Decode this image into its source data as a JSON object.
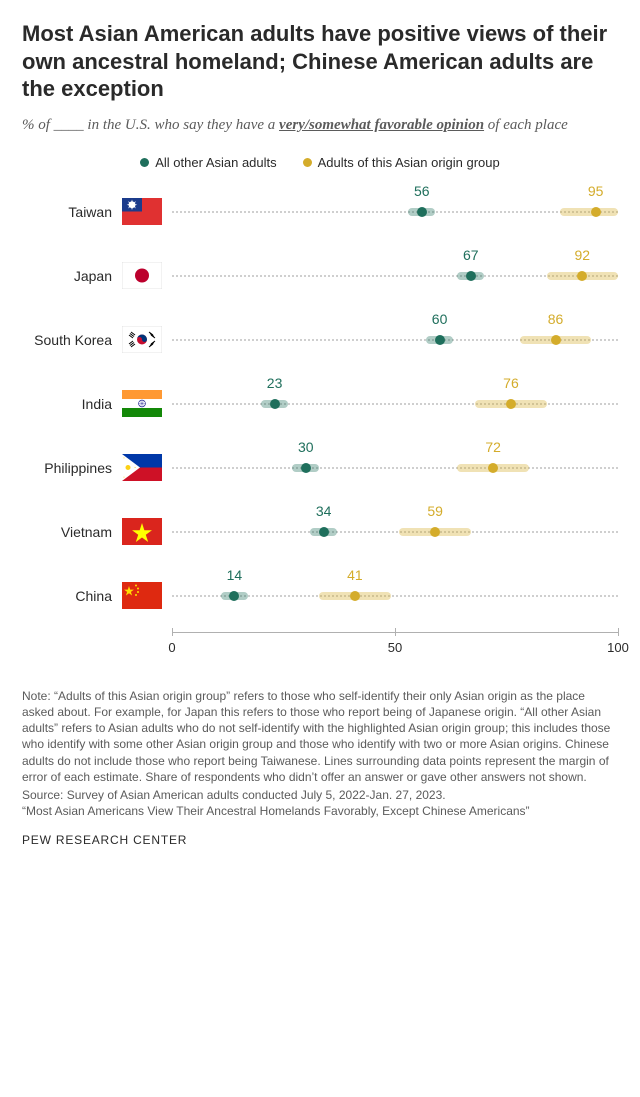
{
  "title": "Most Asian American adults have positive views of their own ancestral homeland; Chinese American adults are the exception",
  "subtitle_pre": "% of ____ in the U.S. who say they have a ",
  "subtitle_underlined": "very/somewhat favorable opinion",
  "subtitle_post": " of each place",
  "legend": {
    "series_a": "All other Asian adults",
    "series_b": "Adults of this Asian origin group"
  },
  "colors": {
    "series_a": "#1f6f5c",
    "series_b": "#d4ac2b",
    "background": "#ffffff",
    "dotted": "#cfcfcf",
    "axis": "#b0b0b0",
    "text": "#2a2a2a",
    "subtext": "#5b5b5b"
  },
  "chart": {
    "type": "dot",
    "xlim": [
      0,
      100
    ],
    "ticks": [
      0,
      50,
      100
    ],
    "moe_halfwidth_a": 3,
    "moe_halfwidth_b": 8,
    "rows": [
      {
        "label": "Taiwan",
        "a": 56,
        "b": 95
      },
      {
        "label": "Japan",
        "a": 67,
        "b": 92
      },
      {
        "label": "South Korea",
        "a": 60,
        "b": 86
      },
      {
        "label": "India",
        "a": 23,
        "b": 76
      },
      {
        "label": "Philippines",
        "a": 30,
        "b": 72
      },
      {
        "label": "Vietnam",
        "a": 34,
        "b": 59
      },
      {
        "label": "China",
        "a": 14,
        "b": 41
      }
    ]
  },
  "note": "Note: “Adults of this Asian origin group” refers to those who self-identify their only Asian origin as the place asked about. For example, for Japan this refers to those who report being of Japanese origin. “All other Asian adults” refers to Asian adults who do not self-identify with the highlighted Asian origin group; this includes those who identify with some other Asian origin group and those who identify with two or more Asian origins. Chinese adults do not include those who report being Taiwanese. Lines surrounding data points represent the margin of error of each estimate. Share of respondents who didn’t offer an answer or gave other answers not shown.",
  "source": "Source: Survey of Asian American adults conducted July 5, 2022-Jan. 27, 2023.\n“Most Asian Americans View Their Ancestral Homelands Favorably, Except Chinese Americans”",
  "attribution": "PEW RESEARCH CENTER",
  "flags": {
    "Taiwan": "<svg viewBox='0 0 40 27'><rect width='40' height='27' fill='#e03131'/><rect width='20' height='13.5' fill='#1b3b8b'/><circle cx='10' cy='6.75' r='3.4' fill='#fff'/><g fill='#fff'><path d='M10 1.5 L10.8 4 L9.2 4 Z'/><path d='M10 12 L10.8 9.5 L9.2 9.5 Z'/><path d='M4.8 6.75 L7.3 7.55 L7.3 5.95 Z'/><path d='M15.2 6.75 L12.7 7.55 L12.7 5.95 Z'/><path d='M6.3 3 L8.3 4.9 L7.2 6 Z'/><path d='M13.7 3 L11.7 4.9 L12.8 6 Z'/><path d='M6.3 10.5 L8.3 8.6 L7.2 7.5 Z'/><path d='M13.7 10.5 L11.7 8.6 L12.8 7.5 Z'/></g></svg>",
    "Japan": "<svg viewBox='0 0 40 27'><rect width='40' height='27' fill='#fff' stroke='#ccc' stroke-width='0.5'/><circle cx='20' cy='13.5' r='7' fill='#bc002d'/></svg>",
    "South Korea": "<svg viewBox='0 0 40 27'><rect width='40' height='27' fill='#fff' stroke='#ccc' stroke-width='0.5'/><circle cx='20' cy='13.5' r='5' fill='#c60c30'/><path d='M15 13.5 A5 5 0 0 1 25 13.5 A2.5 2.5 0 0 1 20 13.5 A2.5 2.5 0 0 0 15 13.5 Z' fill='#003478'/><g stroke='#000' stroke-width='1' fill='none'><line x1='9' y1='6' x2='13' y2='9'/><line x1='8' y1='7.5' x2='12' y2='10.5'/><line x1='7' y1='9' x2='11' y2='12'/><line x1='27' y1='6' x2='31' y2='9'/><line x1='28' y1='7.5' x2='32' y2='10.5'/><line x1='29' y1='9' x2='33' y2='12'/><line x1='9' y1='21' x2='13' y2='18'/><line x1='8' y1='19.5' x2='12' y2='16.5'/><line x1='7' y1='18' x2='11' y2='15'/><line x1='27' y1='21' x2='31' y2='18'/><line x1='28' y1='19.5' x2='32' y2='16.5'/><line x1='29' y1='18' x2='33' y2='15'/></g></svg>",
    "India": "<svg viewBox='0 0 40 27'><rect width='40' height='9' fill='#ff9933'/><rect y='9' width='40' height='9' fill='#fff'/><rect y='18' width='40' height='9' fill='#138808'/><circle cx='20' cy='13.5' r='3.4' fill='none' stroke='#000080' stroke-width='0.6'/><g stroke='#000080' stroke-width='0.3'><line x1='20' y1='10.1' x2='20' y2='16.9'/><line x1='16.6' y1='13.5' x2='23.4' y2='13.5'/><line x1='17.6' y1='11.1' x2='22.4' y2='15.9'/><line x1='22.4' y1='11.1' x2='17.6' y2='15.9'/></g></svg>",
    "Philippines": "<svg viewBox='0 0 40 27'><rect width='40' height='13.5' fill='#0038a8'/><rect y='13.5' width='40' height='13.5' fill='#ce1126'/><path d='M0 0 L18 13.5 L0 27 Z' fill='#fff'/><circle cx='6' cy='13.5' r='2.5' fill='#fcd116'/><path d='M2 3 L2.6 4.3 L1.4 4.3 Z' fill='#fcd116'/><path d='M2 24 L2.6 22.7 L1.4 22.7 Z' fill='#fcd116'/><path d='M14 13.5 L12.7 14.1 L12.7 12.9 Z' fill='#fcd116'/></svg>",
    "Vietnam": "<svg viewBox='0 0 40 27'><rect width='40' height='27' fill='#da251d'/><path d='M20 5 L22.35 12.24 L29.96 12.24 L23.8 16.72 L26.16 23.96 L20 19.48 L13.84 23.96 L16.2 16.72 L10.04 12.24 L17.65 12.24 Z' fill='#ffff00'/></svg>",
    "China": "<svg viewBox='0 0 40 27'><rect width='40' height='27' fill='#de2910'/><path d='M7 4 L8.18 7.62 L11.98 7.62 L8.9 9.86 L10.08 13.48 L7 11.24 L3.92 13.48 L5.1 9.86 L2.02 7.62 L5.82 7.62 Z' fill='#ffde00'/><circle cx='14' cy='3.5' r='1' fill='#ffde00'/><circle cx='16' cy='6.5' r='1' fill='#ffde00'/><circle cx='16' cy='10' r='1' fill='#ffde00'/><circle cx='14' cy='13' r='1' fill='#ffde00'/></svg>"
  }
}
